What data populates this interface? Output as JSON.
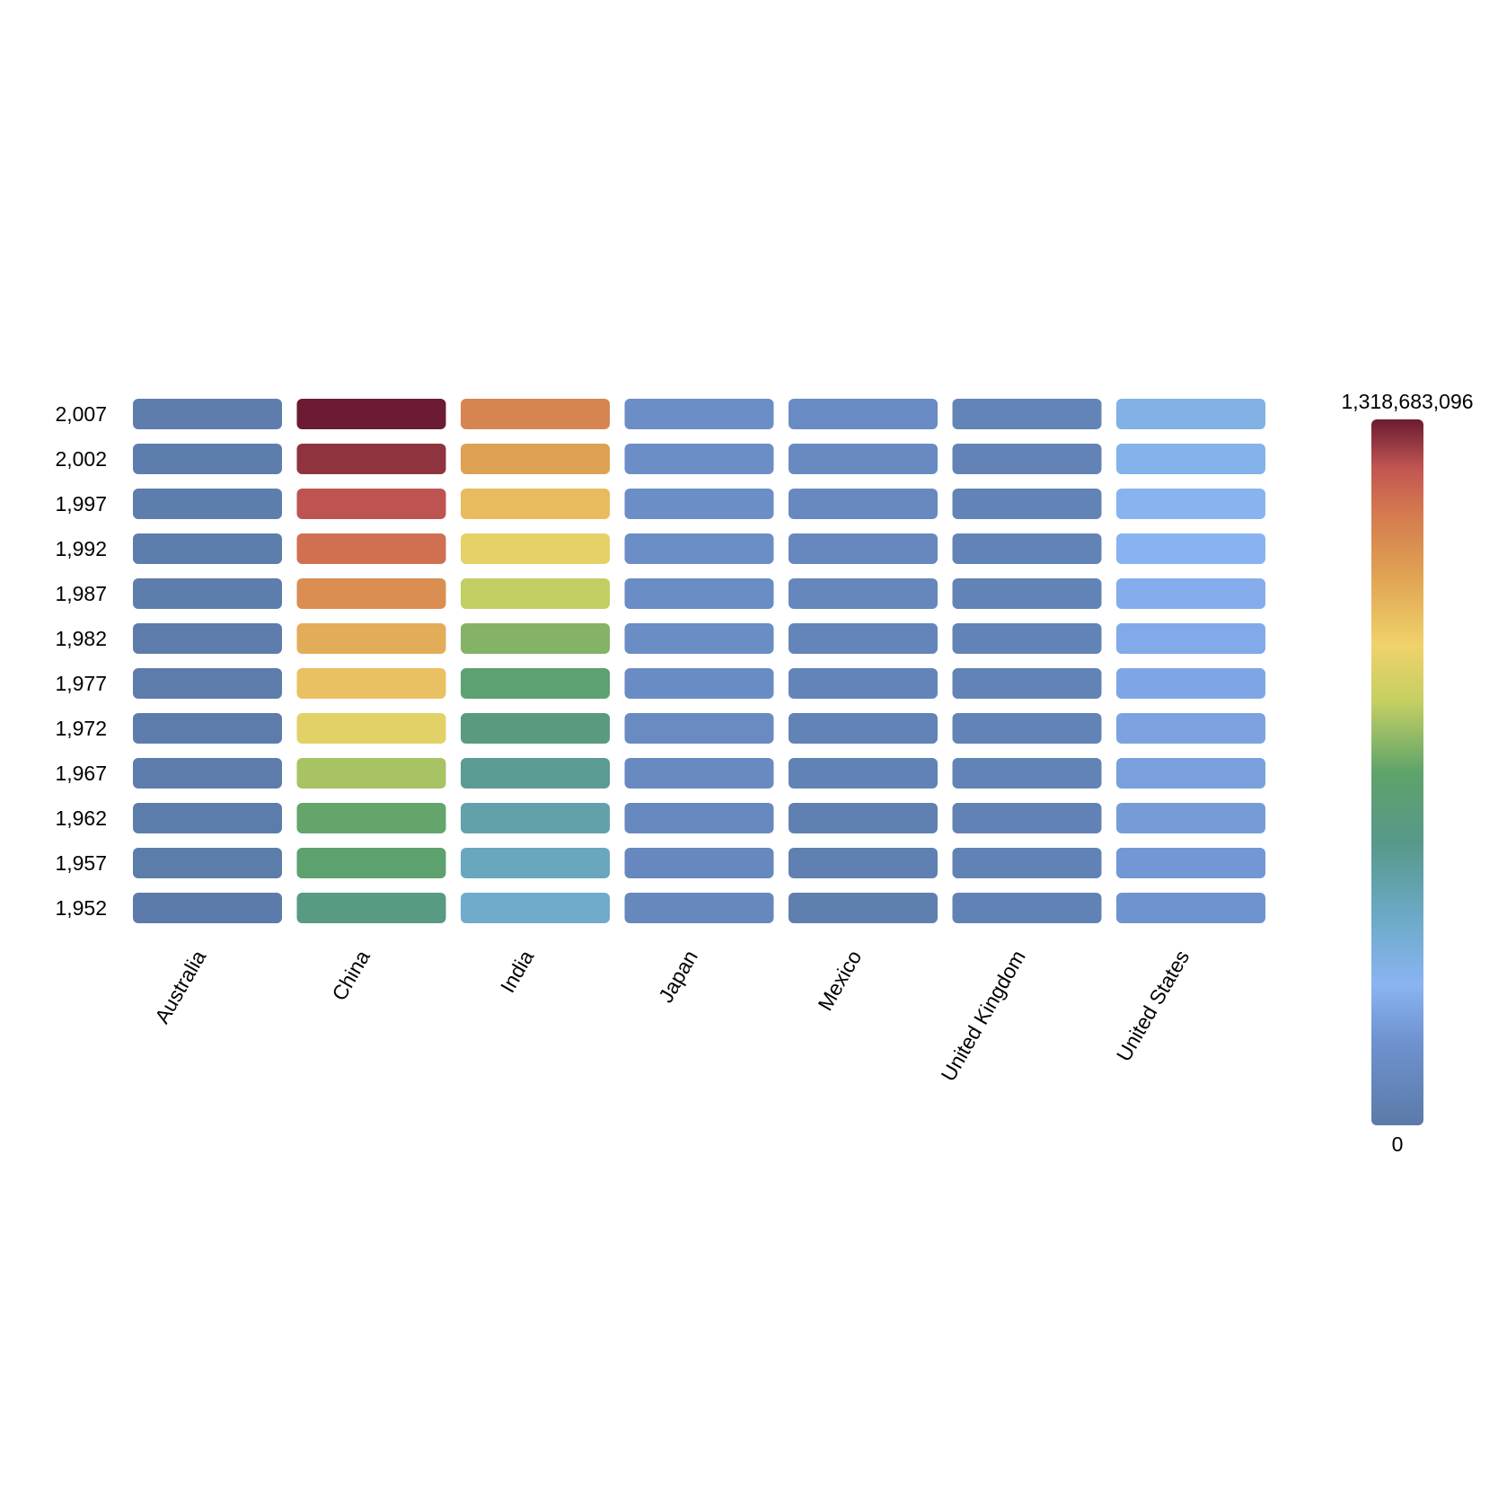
{
  "chart_data": {
    "type": "heatmap",
    "x_categories": [
      "Australia",
      "China",
      "India",
      "Japan",
      "Mexico",
      "United Kingdom",
      "United States"
    ],
    "y_categories": [
      "2,007",
      "2,002",
      "1,997",
      "1,992",
      "1,987",
      "1,982",
      "1,977",
      "1,972",
      "1,967",
      "1,962",
      "1,957",
      "1,952"
    ],
    "values": [
      [
        20400000,
        1318683096,
        1110000000,
        127400000,
        108700000,
        60800000,
        301100000
      ],
      [
        19500000,
        1280400000,
        1034000000,
        127100000,
        102500000,
        59900000,
        287700000
      ],
      [
        18600000,
        1230100000,
        959000000,
        125900000,
        95900000,
        58800000,
        272900000
      ],
      [
        17500000,
        1164970000,
        872000000,
        124300000,
        88100000,
        57900000,
        256900000
      ],
      [
        16300000,
        1084035000,
        788000000,
        122100000,
        80100000,
        56900000,
        242800000
      ],
      [
        15200000,
        1000281000,
        708000000,
        118500000,
        71600000,
        56300000,
        232200000
      ],
      [
        14100000,
        943455000,
        634000000,
        113900000,
        63800000,
        56200000,
        220200000
      ],
      [
        13200000,
        862030000,
        567000000,
        107200000,
        55900000,
        56100000,
        209900000
      ],
      [
        11900000,
        754550000,
        506000000,
        100800000,
        47900000,
        54900000,
        198700000
      ],
      [
        10800000,
        665770000,
        454000000,
        95800000,
        41100000,
        53300000,
        186500000
      ],
      [
        9700000,
        637408000,
        409000000,
        91600000,
        35000000,
        51400000,
        171900000
      ],
      [
        8700000,
        556263000,
        372000000,
        86500000,
        30100000,
        50400000,
        157600000
      ]
    ],
    "color_range": [
      0,
      1318683096
    ],
    "colorbar_max_label": "1,318,683,096",
    "colorbar_min_label": "0",
    "colorscale": [
      [
        0.0,
        "#5b7aa8"
      ],
      [
        0.12,
        "#6f93cf"
      ],
      [
        0.2,
        "#8ab4f2"
      ],
      [
        0.3,
        "#6aa9c4"
      ],
      [
        0.4,
        "#58988a"
      ],
      [
        0.5,
        "#5ea36a"
      ],
      [
        0.6,
        "#c4cf62"
      ],
      [
        0.68,
        "#f0d26a"
      ],
      [
        0.78,
        "#dfa253"
      ],
      [
        0.87,
        "#d4784f"
      ],
      [
        0.93,
        "#c25652"
      ],
      [
        1.0,
        "#6b1c32"
      ]
    ],
    "legend_position": "right"
  }
}
